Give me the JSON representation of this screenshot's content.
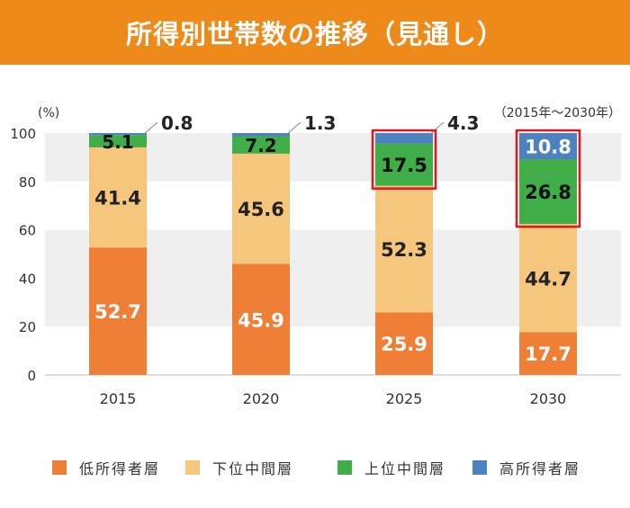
{
  "title": "所得別世帯数の推移（見通し）",
  "colors": {
    "title_bg": "#EE8A1A",
    "low": "#EE7F35",
    "lower_middle": "#F5C67C",
    "upper_middle": "#3FAE49",
    "high": "#4E81C0",
    "highlight_box": "#E2151B",
    "band": "#EFEFEF"
  },
  "chart_data": {
    "type": "bar",
    "stacked": true,
    "ylabel": "(%)",
    "note": "（2015年～2030年）",
    "ylim": [
      0,
      100
    ],
    "yticks": [
      0,
      20,
      40,
      60,
      80,
      100
    ],
    "categories": [
      "2015",
      "2020",
      "2025",
      "2030"
    ],
    "series": [
      {
        "name": "低所得者層",
        "color": "#EE7F35",
        "values": [
          52.7,
          45.9,
          25.9,
          17.7
        ]
      },
      {
        "name": "下位中間層",
        "color": "#F5C67C",
        "values": [
          41.4,
          45.6,
          52.3,
          44.7
        ]
      },
      {
        "name": "上位中間層",
        "color": "#3FAE49",
        "values": [
          5.1,
          7.2,
          17.5,
          26.8
        ]
      },
      {
        "name": "高所得者層",
        "color": "#4E81C0",
        "values": [
          0.8,
          1.3,
          4.3,
          10.8
        ]
      }
    ],
    "highlighted": [
      {
        "category": "2025",
        "series": [
          "上位中間層",
          "高所得者層"
        ]
      },
      {
        "category": "2030",
        "series": [
          "上位中間層",
          "高所得者層"
        ]
      }
    ],
    "grid": "alternating horizontal bands",
    "legend": "bottom"
  }
}
